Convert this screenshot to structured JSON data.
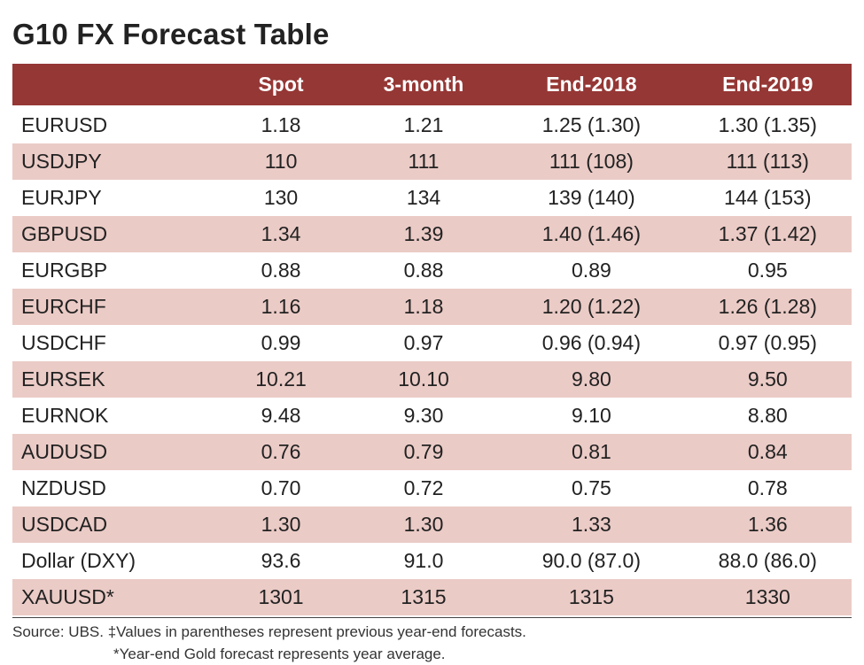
{
  "title": "G10 FX Forecast Table",
  "colors": {
    "header_bg": "#953735",
    "header_text": "#ffffff",
    "row_stripe": "#ebcbc6",
    "row_plain": "#ffffff",
    "text": "#222222",
    "separator": "#444444"
  },
  "column_widths_pct": [
    24,
    16,
    18,
    22,
    20
  ],
  "table": {
    "columns": [
      "",
      "Spot",
      "3-month",
      "End-2018",
      "End-2019"
    ],
    "rows": [
      {
        "pair": "EURUSD",
        "spot": "1.18",
        "m3": "1.21",
        "e18": "1.25 (1.30)",
        "e19": "1.30 (1.35)",
        "stripe": false
      },
      {
        "pair": "USDJPY",
        "spot": "110",
        "m3": "111",
        "e18": "111 (108)",
        "e19": "111 (113)",
        "stripe": true
      },
      {
        "pair": "EURJPY",
        "spot": "130",
        "m3": "134",
        "e18": "139 (140)",
        "e19": "144 (153)",
        "stripe": false
      },
      {
        "pair": "GBPUSD",
        "spot": "1.34",
        "m3": "1.39",
        "e18": "1.40 (1.46)",
        "e19": "1.37 (1.42)",
        "stripe": true
      },
      {
        "pair": "EURGBP",
        "spot": "0.88",
        "m3": "0.88",
        "e18": "0.89",
        "e19": "0.95",
        "stripe": false
      },
      {
        "pair": "EURCHF",
        "spot": "1.16",
        "m3": "1.18",
        "e18": "1.20 (1.22)",
        "e19": "1.26 (1.28)",
        "stripe": true
      },
      {
        "pair": "USDCHF",
        "spot": "0.99",
        "m3": "0.97",
        "e18": "0.96 (0.94)",
        "e19": "0.97 (0.95)",
        "stripe": false
      },
      {
        "pair": "EURSEK",
        "spot": "10.21",
        "m3": "10.10",
        "e18": "9.80",
        "e19": "9.50",
        "stripe": true
      },
      {
        "pair": "EURNOK",
        "spot": "9.48",
        "m3": "9.30",
        "e18": "9.10",
        "e19": "8.80",
        "stripe": false
      },
      {
        "pair": "AUDUSD",
        "spot": "0.76",
        "m3": "0.79",
        "e18": "0.81",
        "e19": "0.84",
        "stripe": true
      },
      {
        "pair": "NZDUSD",
        "spot": "0.70",
        "m3": "0.72",
        "e18": "0.75",
        "e19": "0.78",
        "stripe": false
      },
      {
        "pair": "USDCAD",
        "spot": "1.30",
        "m3": "1.30",
        "e18": "1.33",
        "e19": "1.36",
        "stripe": true
      },
      {
        "pair": "Dollar (DXY)",
        "spot": "93.6",
        "m3": "91.0",
        "e18": "90.0 (87.0)",
        "e19": "88.0 (86.0)",
        "stripe": false
      },
      {
        "pair": "XAUUSD*",
        "spot": "1301",
        "m3": "1315",
        "e18": "1315",
        "e19": "1330",
        "stripe": true
      }
    ]
  },
  "footnotes": {
    "line1": "Source: UBS. ‡Values in parentheses represent previous year-end forecasts.",
    "line2": "*Year-end Gold forecast represents year average."
  }
}
